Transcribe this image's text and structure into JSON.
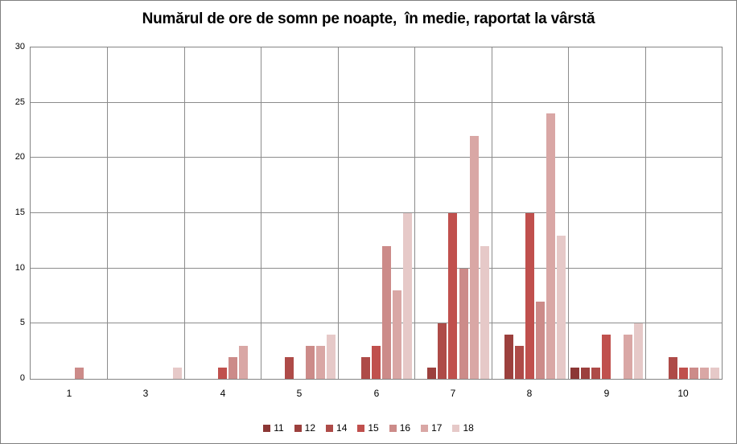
{
  "window": {
    "background": "#ffffff",
    "frame_border_color": "#808080"
  },
  "chart_data": {
    "type": "bar",
    "title": "Numărul de ore de somn pe noapte,  în medie, raportat la vârstă",
    "xlabel": "",
    "ylabel": "",
    "categories": [
      "1",
      "3",
      "4",
      "5",
      "6",
      "7",
      "8",
      "9",
      "10"
    ],
    "series": [
      {
        "name": "11",
        "color": "#8C3735",
        "values": [
          0,
          0,
          0,
          0,
          0,
          0,
          0,
          1,
          0
        ]
      },
      {
        "name": "12",
        "color": "#9C403D",
        "values": [
          0,
          0,
          0,
          0,
          0,
          1,
          4,
          1,
          0
        ]
      },
      {
        "name": "14",
        "color": "#AE4B48",
        "values": [
          0,
          0,
          0,
          2,
          2,
          5,
          3,
          1,
          2
        ]
      },
      {
        "name": "15",
        "color": "#C0504D",
        "values": [
          0,
          0,
          1,
          0,
          3,
          15,
          15,
          4,
          1
        ]
      },
      {
        "name": "16",
        "color": "#CC8B89",
        "values": [
          1,
          0,
          2,
          3,
          12,
          10,
          7,
          0,
          1
        ]
      },
      {
        "name": "17",
        "color": "#D9A7A5",
        "values": [
          0,
          0,
          3,
          3,
          8,
          22,
          24,
          4,
          1
        ]
      },
      {
        "name": "18",
        "color": "#E6C9C8",
        "values": [
          0,
          1,
          0,
          4,
          15,
          12,
          13,
          5,
          1
        ]
      }
    ],
    "ylim": [
      0,
      30
    ],
    "yticks": [
      "0",
      "5",
      "10",
      "15",
      "20",
      "25",
      "30"
    ],
    "ytick_step": 5,
    "grid": "both",
    "gridline_color": "#8C8C8C",
    "legend_position": "bottom",
    "legend_labels": [
      "11",
      "12",
      "14",
      "15",
      "16",
      "17",
      "18"
    ]
  }
}
